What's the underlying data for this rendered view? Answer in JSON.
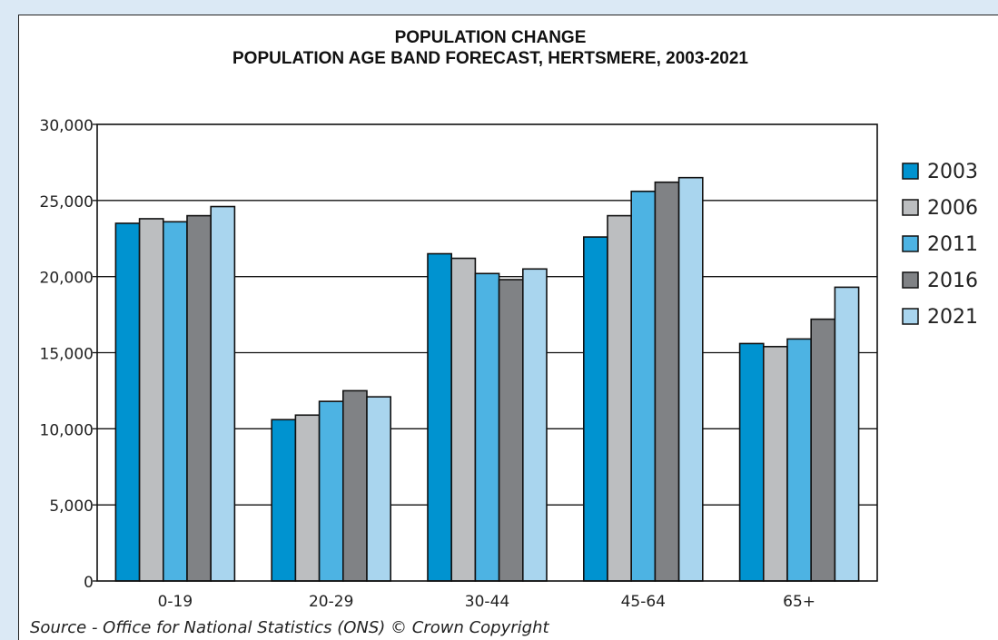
{
  "chart_data": {
    "type": "bar",
    "title": "POPULATION CHANGE",
    "subtitle": "POPULATION AGE BAND FORECAST, HERTSMERE, 2003-2021",
    "categories": [
      "0-19",
      "20-29",
      "30-44",
      "45-64",
      "65+"
    ],
    "series": [
      {
        "name": "2003",
        "color": "#0093d0",
        "values": [
          23500,
          10600,
          21500,
          22600,
          15600
        ]
      },
      {
        "name": "2006",
        "color": "#bcbec0",
        "values": [
          23800,
          10900,
          21200,
          24000,
          15400
        ]
      },
      {
        "name": "2011",
        "color": "#4db3e3",
        "values": [
          23600,
          11800,
          20200,
          25600,
          15900
        ]
      },
      {
        "name": "2016",
        "color": "#808285",
        "values": [
          24000,
          12500,
          19800,
          26200,
          17200
        ]
      },
      {
        "name": "2021",
        "color": "#a9d5ee",
        "values": [
          24600,
          12100,
          20500,
          26500,
          19300
        ]
      }
    ],
    "ylim": [
      0,
      30000
    ],
    "yticks": [
      "0",
      "5,000",
      "10,000",
      "15,000",
      "20,000",
      "25,000",
      "30,000"
    ],
    "grid": true,
    "legend_position": "right"
  },
  "footer": {
    "source": "Source - Office for National Statistics (ONS) © Crown Copyright"
  }
}
